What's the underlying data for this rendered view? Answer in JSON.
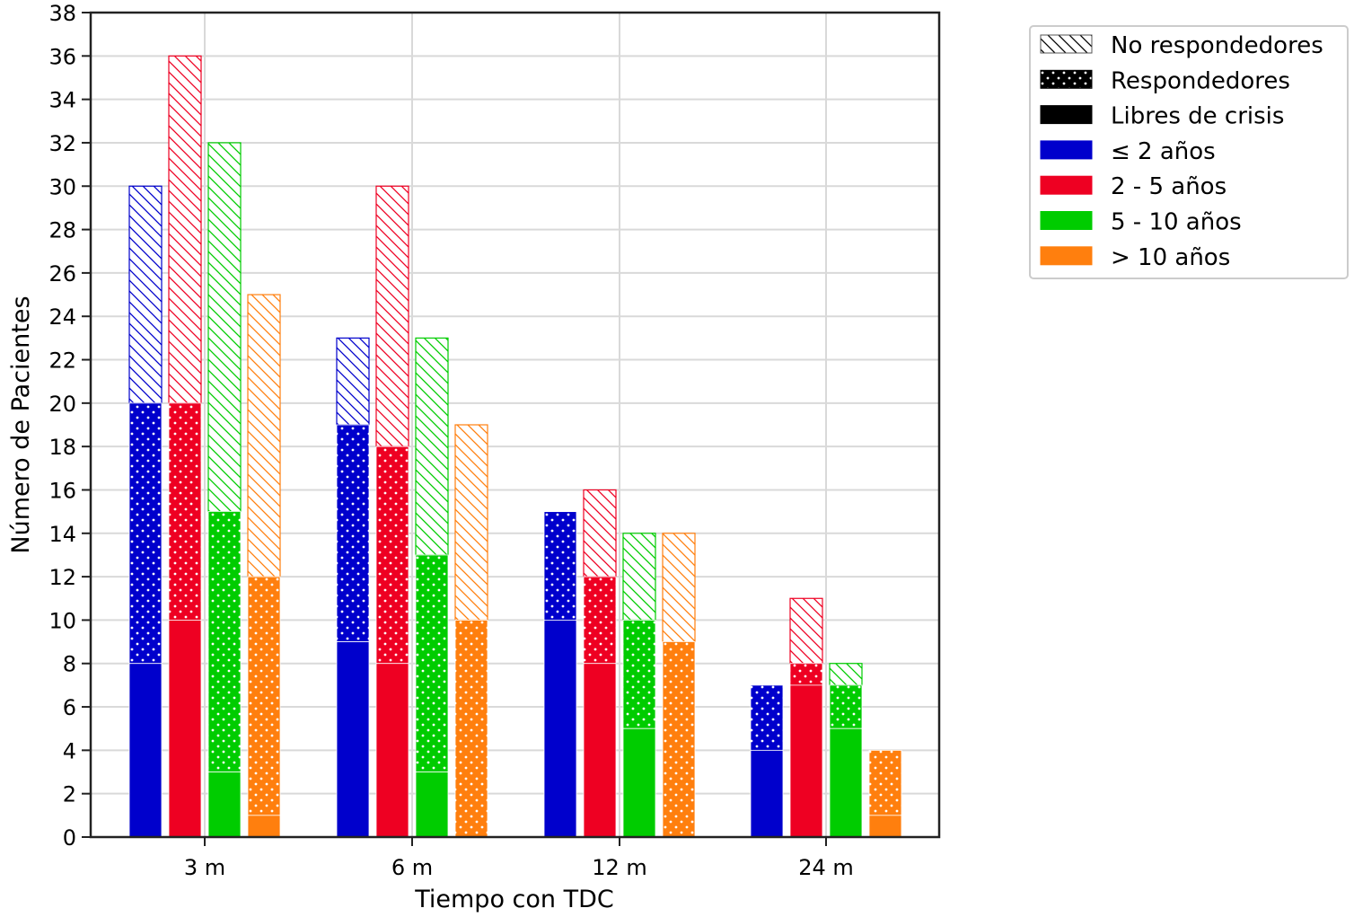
{
  "chart_data": {
    "type": "bar",
    "subtype": "grouped-stacked",
    "xlabel": "Tiempo con TDC",
    "ylabel": "Número de Pacientes",
    "ylim": [
      0,
      38
    ],
    "yticks": [
      0,
      2,
      4,
      6,
      8,
      10,
      12,
      14,
      16,
      18,
      20,
      22,
      24,
      26,
      28,
      30,
      32,
      34,
      36,
      38
    ],
    "categories": [
      "3 m",
      "6 m",
      "12 m",
      "24 m"
    ],
    "grid": true,
    "legend_position": "outside-right-top",
    "stack_layers": [
      {
        "key": "libres",
        "name": "Libres de crisis",
        "pattern": "solid"
      },
      {
        "key": "respondedores",
        "name": "Respondedores",
        "pattern": "dots"
      },
      {
        "key": "no_respondedores",
        "name": "No respondedores",
        "pattern": "hatch"
      }
    ],
    "series": [
      {
        "name": "≤  2 años",
        "color": "#0000cc",
        "libres": [
          8,
          9,
          10,
          4
        ],
        "respondedores": [
          20,
          19,
          15,
          7
        ],
        "no_respondedores": [
          30,
          23,
          15,
          7
        ]
      },
      {
        "name": "2 - 5 años",
        "color": "#ee0022",
        "libres": [
          10,
          8,
          8,
          7
        ],
        "respondedores": [
          20,
          18,
          12,
          8
        ],
        "no_respondedores": [
          36,
          30,
          16,
          11
        ]
      },
      {
        "name": "5 - 10 años",
        "color": "#00cc00",
        "libres": [
          3,
          3,
          5,
          5
        ],
        "respondedores": [
          15,
          13,
          10,
          7
        ],
        "no_respondedores": [
          32,
          23,
          14,
          8
        ]
      },
      {
        "name": "> 10  años",
        "color": "#ff7f0e",
        "libres": [
          1,
          0,
          0,
          1
        ],
        "respondedores": [
          12,
          10,
          9,
          4
        ],
        "no_respondedores": [
          25,
          19,
          14,
          4
        ]
      }
    ],
    "value_note": "stack_layer values are cumulative totals (top of each segment)"
  },
  "legend": [
    {
      "label": "No respondedores",
      "pattern": "hatch",
      "color": "#000000"
    },
    {
      "label": "Respondedores",
      "pattern": "dots",
      "color": "#000000"
    },
    {
      "label": "Libres de crisis",
      "pattern": "solid",
      "color": "#000000"
    },
    {
      "label": "≤  2 años",
      "pattern": "solid",
      "color": "#0000cc"
    },
    {
      "label": "2 - 5 años",
      "pattern": "solid",
      "color": "#ee0022"
    },
    {
      "label": "5 - 10 años",
      "pattern": "solid",
      "color": "#00cc00"
    },
    {
      "label": "> 10  años",
      "pattern": "solid",
      "color": "#ff7f0e"
    }
  ]
}
